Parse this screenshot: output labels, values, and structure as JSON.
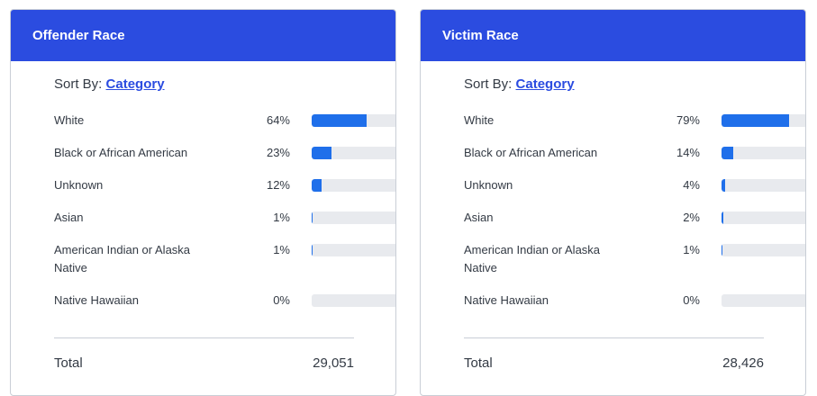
{
  "cards": [
    {
      "title": "Offender Race",
      "sort_label": "Sort By:",
      "sort_value": "Category",
      "rows": [
        {
          "label": "White",
          "pct": "64%",
          "value": 64
        },
        {
          "label": "Black or African American",
          "pct": "23%",
          "value": 23
        },
        {
          "label": "Unknown",
          "pct": "12%",
          "value": 12
        },
        {
          "label": "Asian",
          "pct": "1%",
          "value": 1
        },
        {
          "label": "American Indian or Alaska Native",
          "pct": "1%",
          "value": 1
        },
        {
          "label": "Native Hawaiian",
          "pct": "0%",
          "value": 0
        }
      ],
      "total_label": "Total",
      "total_value": "29,051"
    },
    {
      "title": "Victim Race",
      "sort_label": "Sort By:",
      "sort_value": "Category",
      "rows": [
        {
          "label": "White",
          "pct": "79%",
          "value": 79
        },
        {
          "label": "Black or African American",
          "pct": "14%",
          "value": 14
        },
        {
          "label": "Unknown",
          "pct": "4%",
          "value": 4
        },
        {
          "label": "Asian",
          "pct": "2%",
          "value": 2
        },
        {
          "label": "American Indian or Alaska Native",
          "pct": "1%",
          "value": 1
        },
        {
          "label": "Native Hawaiian",
          "pct": "0%",
          "value": 0
        }
      ],
      "total_label": "Total",
      "total_value": "28,426"
    }
  ],
  "colors": {
    "header": "#2b4ce0",
    "bar": "#1f6fea",
    "track": "#e8eaee"
  }
}
